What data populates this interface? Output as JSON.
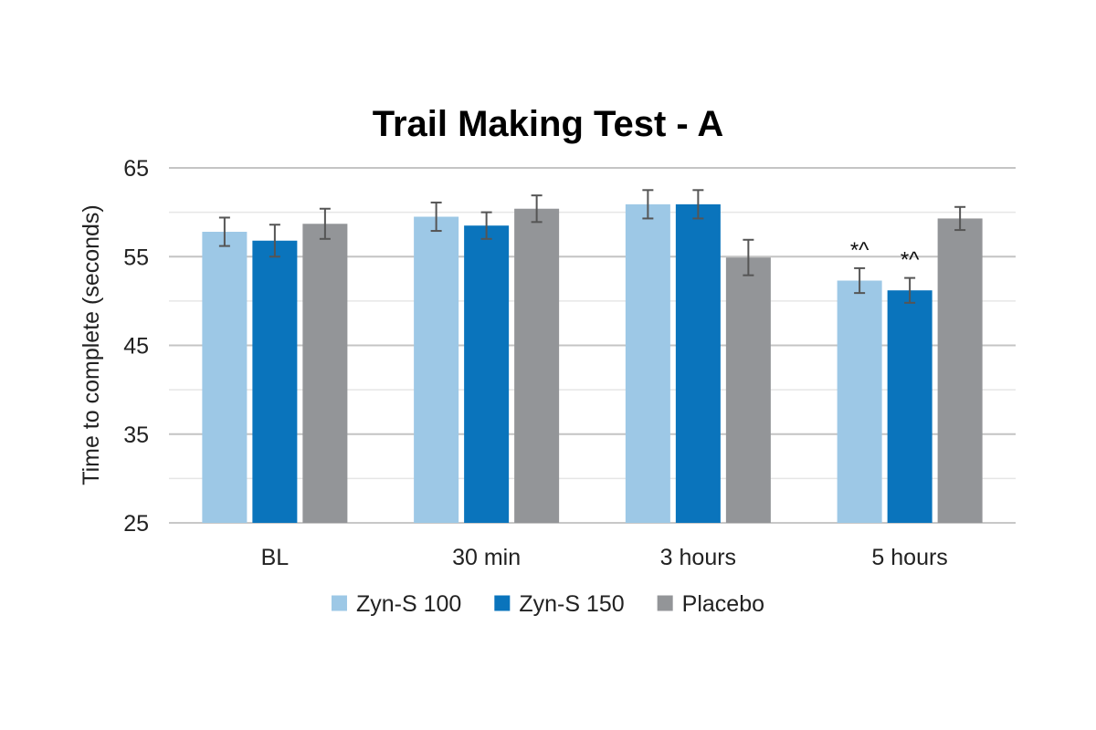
{
  "chart_data": {
    "type": "bar",
    "title": "Trail Making Test - A",
    "xlabel": "",
    "ylabel": "Time to complete (seconds)",
    "ylim": [
      25,
      65
    ],
    "yticks": [
      25,
      35,
      45,
      55,
      65
    ],
    "minor_gridlines": [
      30,
      40,
      50,
      60
    ],
    "grid": true,
    "legend_position": "bottom",
    "categories": [
      "BL",
      "30 min",
      "3 hours",
      "5 hours"
    ],
    "series": [
      {
        "name": "Zyn-S 100",
        "color": "#9dc8e6",
        "values": [
          57.8,
          59.5,
          60.9,
          52.3
        ],
        "error": [
          1.6,
          1.6,
          1.6,
          1.4
        ]
      },
      {
        "name": "Zyn-S 150",
        "color": "#0a74bc",
        "values": [
          56.8,
          58.5,
          60.9,
          51.2
        ],
        "error": [
          1.8,
          1.5,
          1.6,
          1.4
        ]
      },
      {
        "name": "Placebo",
        "color": "#939598",
        "values": [
          58.7,
          60.4,
          54.9,
          59.3
        ],
        "error": [
          1.7,
          1.5,
          2.0,
          1.3
        ]
      }
    ],
    "annotations": [
      {
        "category": "5 hours",
        "series": "Zyn-S 100",
        "text": "*^"
      },
      {
        "category": "5 hours",
        "series": "Zyn-S 150",
        "text": "*^"
      }
    ]
  }
}
